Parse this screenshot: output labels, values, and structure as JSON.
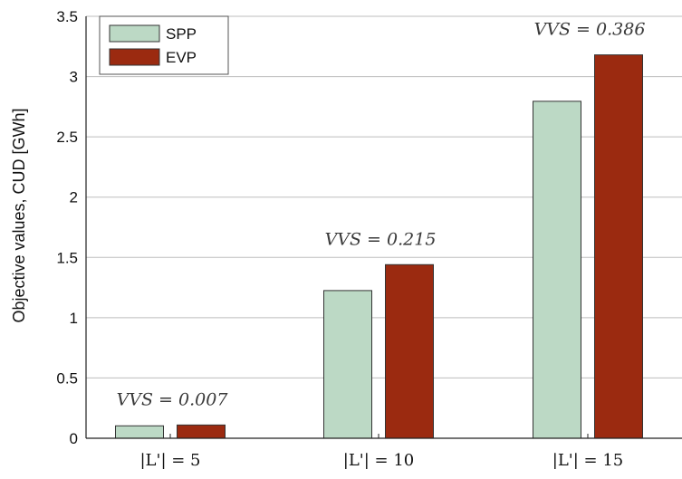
{
  "chart_data": {
    "type": "bar",
    "categories": [
      "|L'| = 5",
      "|L'| = 10",
      "|L'| = 15"
    ],
    "series": [
      {
        "name": "SPP",
        "values": [
          0.103,
          1.225,
          2.795
        ],
        "color": "#bcd9c5"
      },
      {
        "name": "EVP",
        "values": [
          0.11,
          1.44,
          3.18
        ],
        "color": "#9b2a10"
      }
    ],
    "ylabel": "Objective values, CUD [GWh]",
    "xlabel": "",
    "ylim": [
      0,
      3.5
    ],
    "yticks": [
      0,
      0.5,
      1,
      1.5,
      2,
      2.5,
      3,
      3.5
    ],
    "ytick_labels": [
      "0",
      "0.5",
      "1",
      "1.5",
      "2",
      "2.5",
      "3",
      "3.5"
    ],
    "annotations": [
      "VVS = 0.007",
      "VVS = 0.215",
      "VVS = 0.386"
    ],
    "grid": true,
    "legend_position": "top-left"
  }
}
